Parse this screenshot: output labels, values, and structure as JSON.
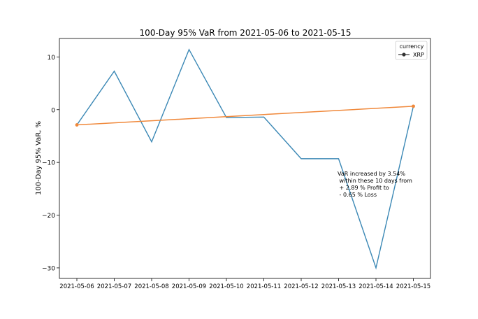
{
  "chart_data": {
    "type": "line",
    "title": "100-Day 95% VaR from 2021-05-06 to 2021-05-15",
    "xlabel": "",
    "ylabel": "100-Day 95% VaR, %",
    "x": [
      "2021-05-06",
      "2021-05-07",
      "2021-05-08",
      "2021-05-09",
      "2021-05-10",
      "2021-05-11",
      "2021-05-12",
      "2021-05-13",
      "2021-05-14",
      "2021-05-15"
    ],
    "ylim": [
      -32.0,
      13.5
    ],
    "yticks": [
      10,
      0,
      -10,
      -20,
      -30
    ],
    "ytick_labels": [
      "10",
      "0",
      "−10",
      "−20",
      "−30"
    ],
    "series": [
      {
        "name": "XRP",
        "color": "#3b88b5",
        "values": [
          -2.89,
          7.3,
          -6.1,
          11.4,
          -1.5,
          -1.4,
          -9.3,
          -9.3,
          -30.0,
          0.65
        ]
      }
    ],
    "trend_line": {
      "color": "#f0883a",
      "start": {
        "x": "2021-05-06",
        "y": -2.89
      },
      "end": {
        "x": "2021-05-15",
        "y": 0.65
      }
    },
    "legend": {
      "title": "currency",
      "entries": [
        "XRP"
      ],
      "placement": "top-right"
    },
    "annotation": {
      "lines": [
        "VaR increased by 3.54%",
        " within these 10 days from",
        " + 2.89 % Profit to",
        " - 0.65 % Loss"
      ]
    },
    "grid": false
  }
}
